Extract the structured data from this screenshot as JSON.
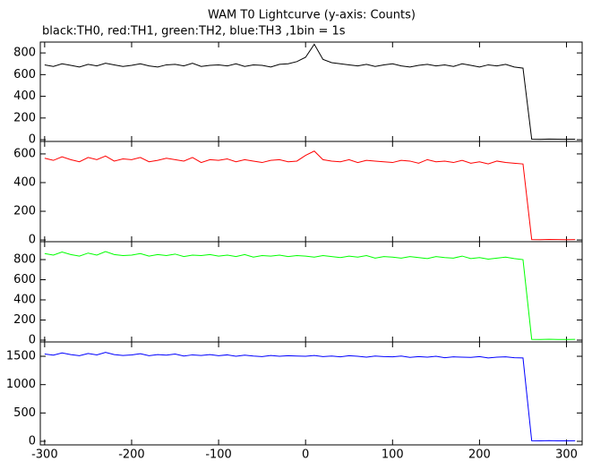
{
  "chart_data": [
    {
      "type": "line",
      "title": "WAM T0 Lightcurve (y-axis: Counts)",
      "subtitle": "black:TH0, red:TH1, green:TH2, blue:TH3 ,1bin = 1s",
      "color": "#000000",
      "x": [
        -300,
        -290,
        -280,
        -270,
        -260,
        -250,
        -240,
        -230,
        -220,
        -210,
        -200,
        -190,
        -180,
        -170,
        -160,
        -150,
        -140,
        -130,
        -120,
        -110,
        -100,
        -90,
        -80,
        -70,
        -60,
        -50,
        -40,
        -30,
        -20,
        -10,
        0,
        10,
        20,
        30,
        40,
        50,
        60,
        70,
        80,
        90,
        100,
        110,
        120,
        130,
        140,
        150,
        160,
        170,
        180,
        190,
        200,
        210,
        220,
        230,
        240,
        250,
        260,
        270,
        280,
        290,
        300,
        310
      ],
      "values": [
        690,
        675,
        700,
        685,
        670,
        695,
        680,
        705,
        690,
        675,
        685,
        700,
        680,
        670,
        690,
        695,
        680,
        705,
        675,
        685,
        690,
        680,
        700,
        675,
        690,
        685,
        670,
        695,
        700,
        720,
        760,
        880,
        740,
        710,
        700,
        690,
        680,
        695,
        675,
        690,
        700,
        680,
        670,
        685,
        695,
        680,
        690,
        675,
        700,
        685,
        670,
        690,
        680,
        695,
        670,
        660,
        5,
        4,
        6,
        5,
        4,
        5
      ],
      "xlim": [
        -305,
        318
      ],
      "ylim": [
        -16,
        900
      ],
      "xticks": [
        -300,
        -200,
        -100,
        0,
        100,
        200,
        300
      ],
      "yticks": [
        0,
        200,
        400,
        600,
        800
      ]
    },
    {
      "type": "line",
      "color": "#ff0000",
      "x": [
        -300,
        -290,
        -280,
        -270,
        -260,
        -250,
        -240,
        -230,
        -220,
        -210,
        -200,
        -190,
        -180,
        -170,
        -160,
        -150,
        -140,
        -130,
        -120,
        -110,
        -100,
        -90,
        -80,
        -70,
        -60,
        -50,
        -40,
        -30,
        -20,
        -10,
        0,
        10,
        20,
        30,
        40,
        50,
        60,
        70,
        80,
        90,
        100,
        110,
        120,
        130,
        140,
        150,
        160,
        170,
        180,
        190,
        200,
        210,
        220,
        230,
        240,
        250,
        260,
        270,
        280,
        290,
        300,
        310
      ],
      "values": [
        570,
        555,
        580,
        560,
        545,
        575,
        560,
        585,
        550,
        565,
        560,
        575,
        545,
        555,
        570,
        560,
        550,
        575,
        540,
        560,
        555,
        565,
        545,
        560,
        550,
        540,
        555,
        560,
        545,
        550,
        590,
        620,
        560,
        550,
        545,
        560,
        540,
        555,
        550,
        545,
        540,
        555,
        550,
        535,
        560,
        545,
        550,
        540,
        555,
        535,
        545,
        530,
        550,
        540,
        535,
        530,
        3,
        2,
        4,
        3,
        2,
        3
      ],
      "xlim": [
        -305,
        318
      ],
      "ylim": [
        -12,
        687
      ],
      "xticks": [
        -300,
        -200,
        -100,
        0,
        100,
        200,
        300
      ],
      "yticks": [
        0,
        200,
        400,
        600
      ]
    },
    {
      "type": "line",
      "color": "#00ff00",
      "x": [
        -300,
        -290,
        -280,
        -270,
        -260,
        -250,
        -240,
        -230,
        -220,
        -210,
        -200,
        -190,
        -180,
        -170,
        -160,
        -150,
        -140,
        -130,
        -120,
        -110,
        -100,
        -90,
        -80,
        -70,
        -60,
        -50,
        -40,
        -30,
        -20,
        -10,
        0,
        10,
        20,
        30,
        40,
        50,
        60,
        70,
        80,
        90,
        100,
        110,
        120,
        130,
        140,
        150,
        160,
        170,
        180,
        190,
        200,
        210,
        220,
        230,
        240,
        250,
        260,
        270,
        280,
        290,
        300,
        310
      ],
      "values": [
        860,
        845,
        875,
        850,
        835,
        865,
        845,
        880,
        850,
        840,
        845,
        860,
        835,
        850,
        840,
        855,
        830,
        845,
        840,
        850,
        835,
        845,
        830,
        850,
        825,
        840,
        835,
        845,
        830,
        840,
        835,
        825,
        840,
        830,
        820,
        835,
        825,
        840,
        815,
        830,
        825,
        815,
        830,
        820,
        810,
        830,
        820,
        815,
        835,
        810,
        820,
        805,
        815,
        825,
        810,
        800,
        8,
        6,
        9,
        7,
        6,
        8
      ],
      "xlim": [
        -305,
        318
      ],
      "ylim": [
        -18,
        978
      ],
      "xticks": [
        -300,
        -200,
        -100,
        0,
        100,
        200,
        300
      ],
      "yticks": [
        0,
        200,
        400,
        600,
        800
      ]
    },
    {
      "type": "line",
      "color": "#0000ff",
      "x": [
        -300,
        -290,
        -280,
        -270,
        -260,
        -250,
        -240,
        -230,
        -220,
        -210,
        -200,
        -190,
        -180,
        -170,
        -160,
        -150,
        -140,
        -130,
        -120,
        -110,
        -100,
        -90,
        -80,
        -70,
        -60,
        -50,
        -40,
        -30,
        -20,
        -10,
        0,
        10,
        20,
        30,
        40,
        50,
        60,
        70,
        80,
        90,
        100,
        110,
        120,
        130,
        140,
        150,
        160,
        170,
        180,
        190,
        200,
        210,
        220,
        230,
        240,
        250,
        260,
        270,
        280,
        290,
        300,
        310
      ],
      "values": [
        1540,
        1520,
        1560,
        1530,
        1510,
        1550,
        1525,
        1570,
        1530,
        1515,
        1525,
        1545,
        1510,
        1530,
        1520,
        1540,
        1505,
        1525,
        1515,
        1530,
        1510,
        1525,
        1500,
        1520,
        1505,
        1495,
        1515,
        1500,
        1510,
        1505,
        1500,
        1515,
        1495,
        1505,
        1490,
        1510,
        1500,
        1485,
        1505,
        1495,
        1490,
        1505,
        1480,
        1495,
        1485,
        1500,
        1475,
        1490,
        1485,
        1480,
        1495,
        1470,
        1485,
        1490,
        1475,
        1470,
        10,
        8,
        12,
        9,
        8,
        10
      ],
      "xlim": [
        -305,
        318
      ],
      "ylim": [
        -63,
        1753
      ],
      "xticks": [
        -300,
        -200,
        -100,
        0,
        100,
        200,
        300
      ],
      "yticks": [
        0,
        500,
        1000,
        1500
      ]
    }
  ]
}
